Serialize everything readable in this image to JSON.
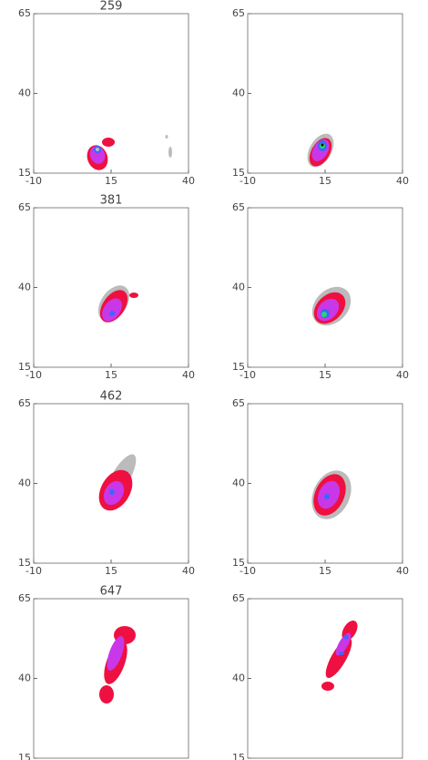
{
  "chart_data": [
    {
      "type": "contour",
      "title": "259",
      "xlim": [
        -10,
        40
      ],
      "xticks": [
        -10,
        15,
        40
      ],
      "ylim": [
        15,
        65
      ],
      "yticks": [
        15,
        40,
        65
      ]
    },
    {
      "type": "contour",
      "xlim": [
        -10,
        40
      ],
      "xticks": [
        -10,
        15,
        40
      ],
      "ylim": [
        15,
        65
      ],
      "yticks": [
        15,
        40,
        65
      ]
    },
    {
      "type": "contour",
      "title": "381",
      "xlim": [
        -10,
        40
      ],
      "xticks": [
        -10,
        15,
        40
      ],
      "ylim": [
        15,
        65
      ],
      "yticks": [
        15,
        40,
        65
      ]
    },
    {
      "type": "contour",
      "xlim": [
        -10,
        40
      ],
      "xticks": [
        -10,
        15,
        40
      ],
      "ylim": [
        15,
        65
      ],
      "yticks": [
        15,
        40,
        65
      ]
    },
    {
      "type": "contour",
      "title": "462",
      "xlim": [
        -10,
        40
      ],
      "xticks": [
        -10,
        15,
        40
      ],
      "ylim": [
        15,
        65
      ],
      "yticks": [
        15,
        40,
        65
      ]
    },
    {
      "type": "contour",
      "xlim": [
        -10,
        40
      ],
      "xticks": [
        -10,
        15,
        40
      ],
      "ylim": [
        15,
        65
      ],
      "yticks": [
        15,
        40,
        65
      ]
    },
    {
      "type": "contour",
      "title": "647",
      "xlim": [
        -10,
        40
      ],
      "ylim": [
        15,
        65
      ],
      "yticks": [
        15,
        40,
        65
      ]
    },
    {
      "type": "contour",
      "xlim": [
        -10,
        40
      ],
      "ylim": [
        15,
        65
      ],
      "yticks": [
        15,
        40,
        65
      ]
    }
  ]
}
